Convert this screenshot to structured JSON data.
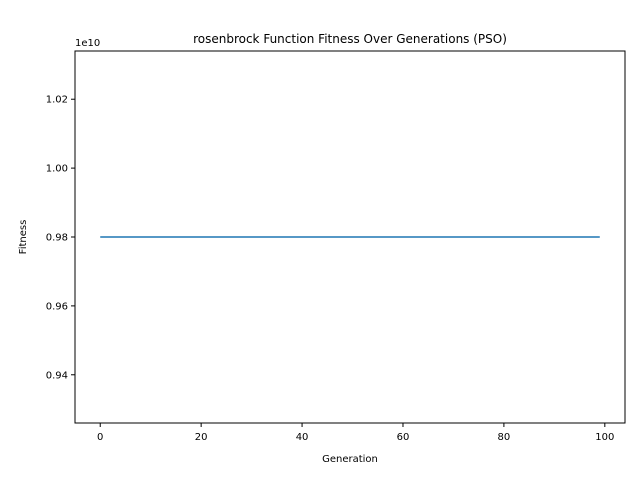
{
  "chart_data": {
    "type": "line",
    "title": "rosenbrock Function Fitness Over Generations (PSO)",
    "xlabel": "Generation",
    "ylabel": "Fitness",
    "y_offset_label": "1e10",
    "xlim": [
      -5,
      104
    ],
    "ylim": [
      0.926,
      1.034
    ],
    "x_ticks": [
      0,
      20,
      40,
      60,
      80,
      100
    ],
    "x_tick_labels": [
      "0",
      "20",
      "40",
      "60",
      "80",
      "100"
    ],
    "y_ticks": [
      0.94,
      0.96,
      0.98,
      1.0,
      1.02
    ],
    "y_tick_labels": [
      "0.94",
      "0.96",
      "0.98",
      "1.00",
      "1.02"
    ],
    "grid": false,
    "legend": "none",
    "y_scale_multiplier": 10000000000,
    "series": [
      {
        "color": "#1f77b4",
        "x_start": 0,
        "x_end": 99,
        "x_step": 1,
        "constant_value_scaled": 0.98
      }
    ]
  }
}
